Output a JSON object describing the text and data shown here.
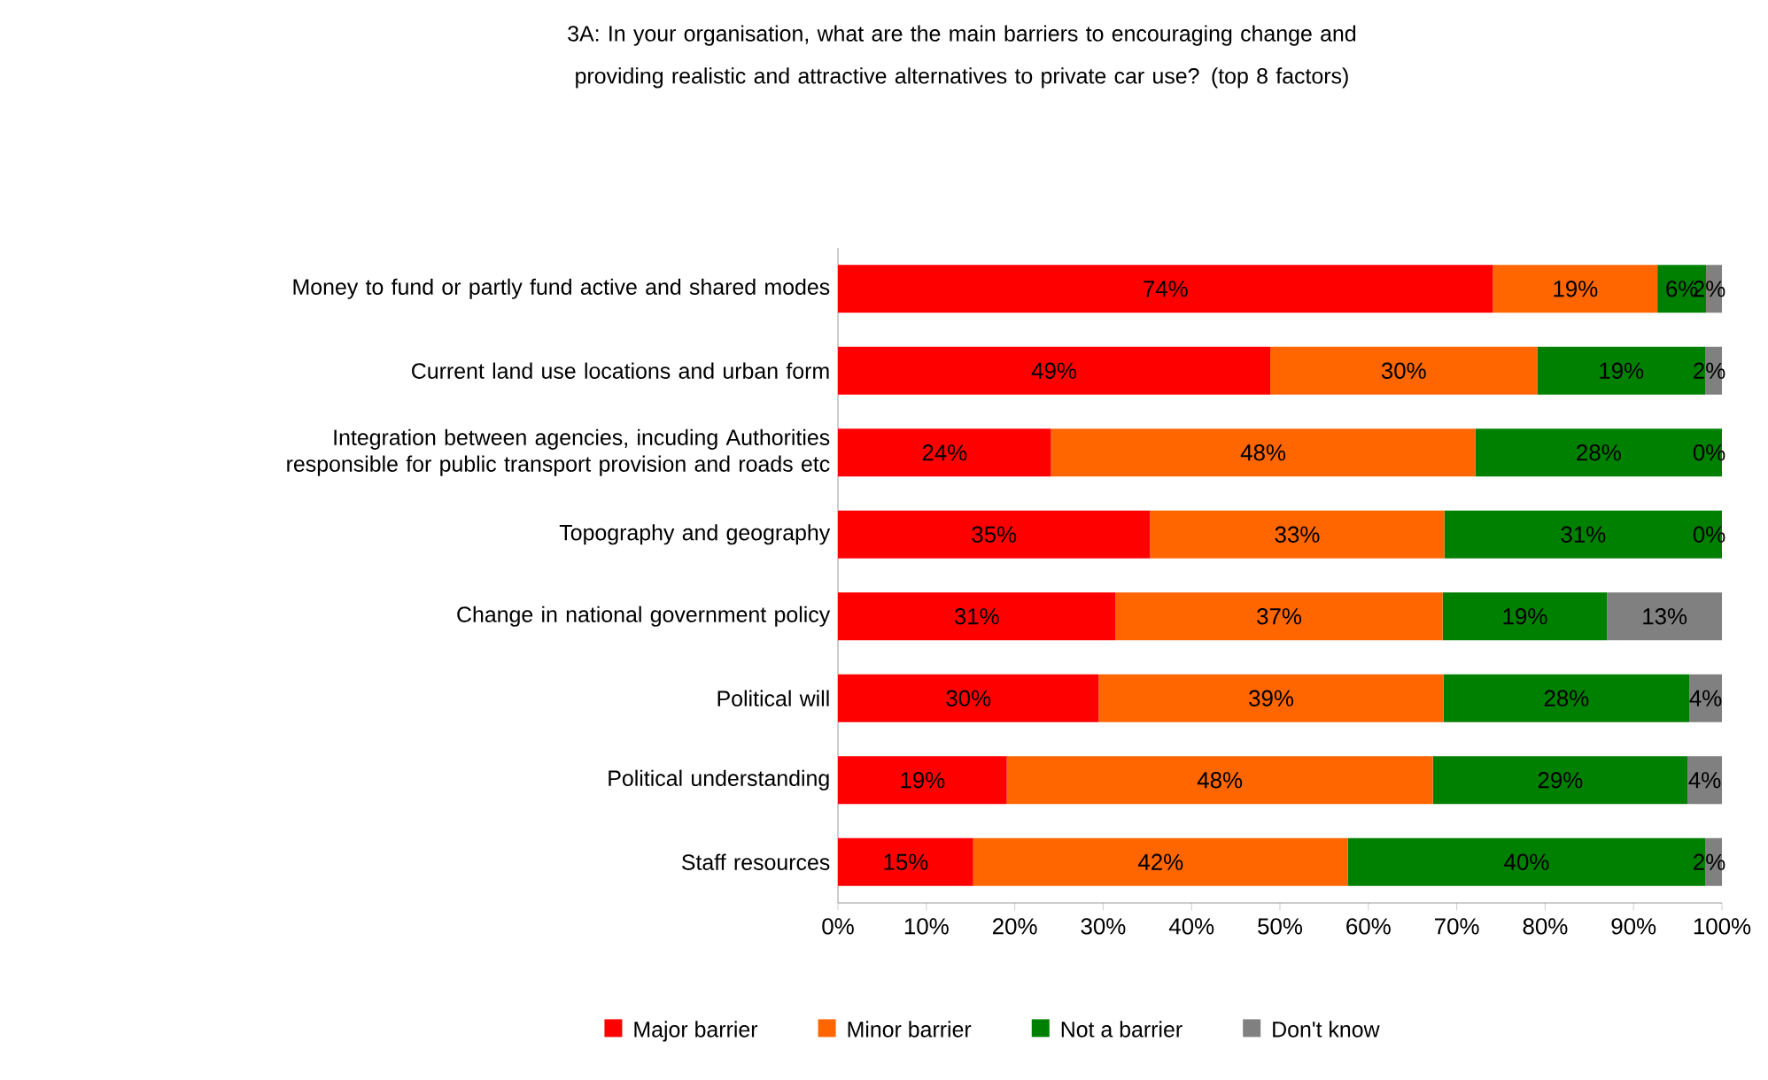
{
  "chart_data": {
    "type": "bar",
    "orientation": "horizontal",
    "stacked": true,
    "title": "3A: In your organisation, what are the main barriers to encouraging change and providing realistic and attractive alternatives to private car use? (top 8 factors)",
    "categories": [
      "Money to fund or partly fund active and shared modes",
      "Current land use locations and urban form",
      "Integration between agencies, incuding Authorities responsible for public transport provision and roads etc",
      "Topography and geography",
      "Change in national government policy",
      "Political will",
      "Political understanding",
      "Staff resources"
    ],
    "series": [
      {
        "name": "Major barrier",
        "color": "#ff0000",
        "values": [
          74.1,
          48.9,
          24.1,
          35.3,
          31.4,
          29.5,
          19.1,
          15.3
        ],
        "value_labels": [
          "74%",
          "49%",
          "24%",
          "35%",
          "31%",
          "30%",
          "19%",
          "15%"
        ]
      },
      {
        "name": "Minor barrier",
        "color": "#ff6600",
        "values": [
          18.6,
          30.2,
          48.0,
          33.3,
          37.0,
          39.0,
          48.2,
          42.4
        ],
        "value_labels": [
          "19%",
          "30%",
          "48%",
          "33%",
          "37%",
          "39%",
          "48%",
          "42%"
        ]
      },
      {
        "name": "Not a barrier",
        "color": "#008000",
        "values": [
          5.5,
          19.0,
          27.9,
          31.4,
          18.6,
          27.8,
          28.8,
          40.4
        ],
        "value_labels": [
          "6%",
          "19%",
          "28%",
          "31%",
          "19%",
          "28%",
          "29%",
          "40%"
        ]
      },
      {
        "name": "Don't know",
        "color": "#808080",
        "values": [
          1.8,
          1.9,
          0,
          0,
          13.0,
          3.7,
          3.9,
          1.9
        ],
        "value_labels": [
          "2%",
          "2%",
          "0%",
          "0%",
          "13%",
          "4%",
          "4%",
          "2%"
        ]
      }
    ],
    "xlim": [
      0,
      100
    ],
    "xticks": [
      {
        "value": 0,
        "label": "0%"
      },
      {
        "value": 10,
        "label": "10%"
      },
      {
        "value": 20,
        "label": "20%"
      },
      {
        "value": 30,
        "label": "30%"
      },
      {
        "value": 40,
        "label": "40%"
      },
      {
        "value": 50,
        "label": "50%"
      },
      {
        "value": 60,
        "label": "60%"
      },
      {
        "value": 70,
        "label": "70%"
      },
      {
        "value": 80,
        "label": "80%"
      },
      {
        "value": 90,
        "label": "90%"
      },
      {
        "value": 100,
        "label": "100%"
      }
    ],
    "legend": "bottom"
  }
}
